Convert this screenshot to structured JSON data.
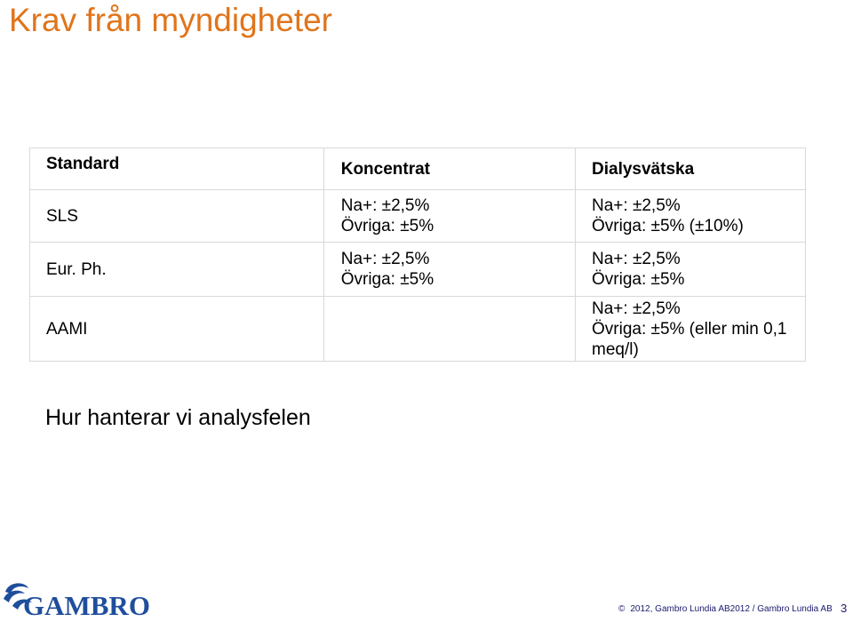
{
  "title": "Krav från myndigheter",
  "table": {
    "headers": {
      "standard": "Standard",
      "koncentrat": "Koncentrat",
      "dialysvatska": "Dialysvätska"
    },
    "rows": [
      {
        "label": "SLS",
        "koncentrat": [
          "Na+: ±2,5%",
          "Övriga: ±5%"
        ],
        "dialysvatska": [
          "Na+: ±2,5%",
          "Övriga: ±5% (±10%)"
        ]
      },
      {
        "label": "Eur. Ph.",
        "koncentrat": [
          "Na+: ±2,5%",
          "Övriga: ±5%"
        ],
        "dialysvatska": [
          "Na+: ±2,5%",
          "Övriga: ±5%"
        ]
      },
      {
        "label": "AAMI",
        "koncentrat": [
          "",
          ""
        ],
        "dialysvatska": [
          "Na+: ±2,5%",
          "Övriga: ±5% (eller min 0,1 meq/l)"
        ]
      }
    ]
  },
  "question": "Hur hanterar vi analysfelen",
  "logo": {
    "text": "GAMBRO",
    "color": "#1f4e9c"
  },
  "footer": {
    "copyright_symbol": "©",
    "text": "2012, Gambro Lundia AB2012 / Gambro Lundia AB",
    "page": "3"
  },
  "colors": {
    "title": "#e0751b",
    "border": "#d9d9d9"
  }
}
